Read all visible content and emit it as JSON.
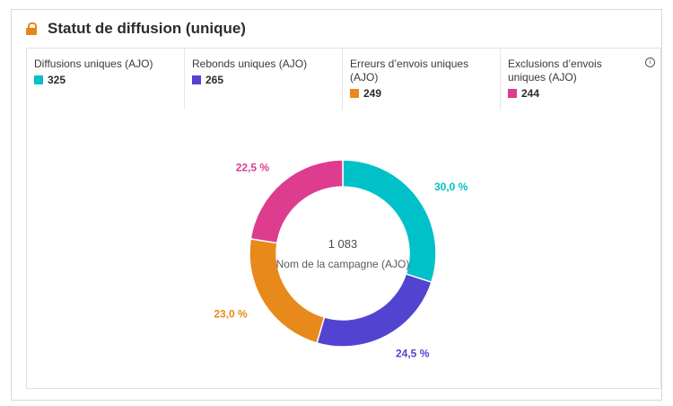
{
  "header": {
    "title": "Statut de diffusion (unique)"
  },
  "metrics": [
    {
      "label": "Diffusions uniques (AJO)",
      "value": "325",
      "color": "#00c1c7"
    },
    {
      "label": "Rebonds uniques (AJO)",
      "value": "265",
      "color": "#5243d1"
    },
    {
      "label": "Erreurs d’envois uniques (AJO)",
      "value": "249",
      "color": "#e8891c"
    },
    {
      "label": "Exclusions d’envois uniques (AJO)",
      "value": "244",
      "color": "#dd3c8f"
    }
  ],
  "chart_data": {
    "type": "pie",
    "title": "",
    "center_value": "1 083",
    "center_label": "Nom de la campagne (AJO)",
    "categories": [
      "Diffusions uniques (AJO)",
      "Rebonds uniques (AJO)",
      "Erreurs d’envois uniques (AJO)",
      "Exclusions d’envois uniques (AJO)"
    ],
    "values": [
      325,
      265,
      249,
      244
    ],
    "percent_labels": [
      "30,0 %",
      "24,5 %",
      "23,0 %",
      "22,5 %"
    ],
    "colors": [
      "#00c1c7",
      "#5243d1",
      "#e8891c",
      "#dd3c8f"
    ],
    "legend": "top"
  }
}
